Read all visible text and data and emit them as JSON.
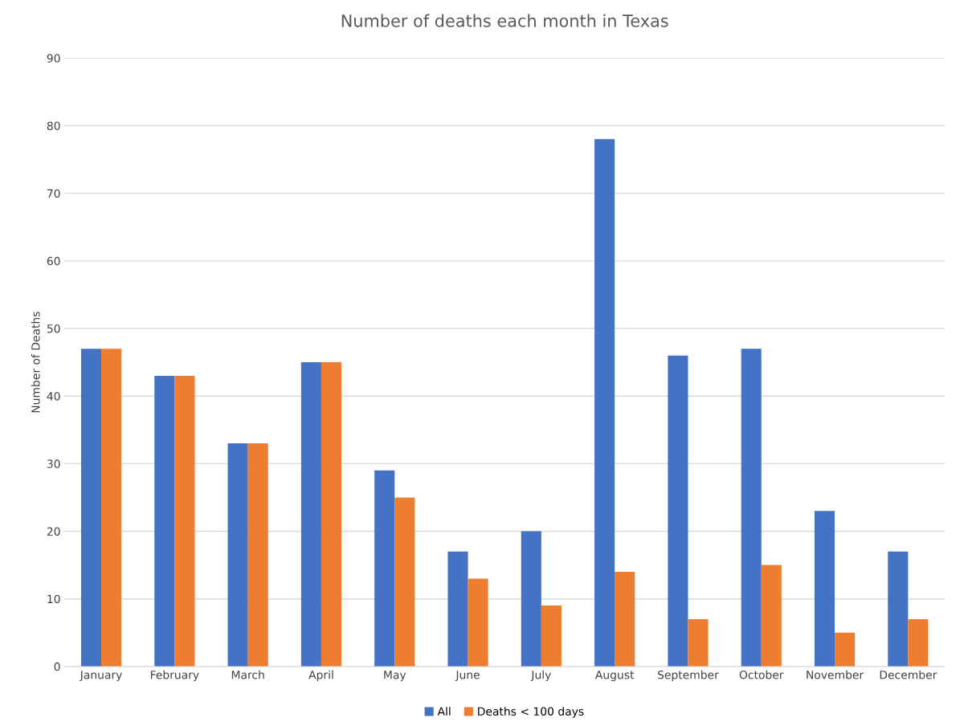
{
  "chart_data": {
    "type": "bar",
    "title": "Number of deaths each month in Texas",
    "ylabel": "Number of Deaths",
    "categories": [
      "January",
      "February",
      "March",
      "April",
      "May",
      "June",
      "July",
      "August",
      "September",
      "October",
      "November",
      "December"
    ],
    "series": [
      {
        "name": "All",
        "color": "#4472c4",
        "values": [
          47,
          43,
          33,
          45,
          29,
          17,
          20,
          78,
          46,
          47,
          23,
          17
        ]
      },
      {
        "name": "Deaths < 100 days",
        "color": "#ed7d31",
        "values": [
          47,
          43,
          33,
          45,
          25,
          13,
          9,
          14,
          7,
          15,
          5,
          7
        ]
      }
    ],
    "ylim": [
      0,
      90
    ],
    "yticks": [
      0,
      10,
      20,
      30,
      40,
      50,
      60,
      70,
      80,
      90
    ],
    "grid": "y",
    "legend": "bottom"
  }
}
